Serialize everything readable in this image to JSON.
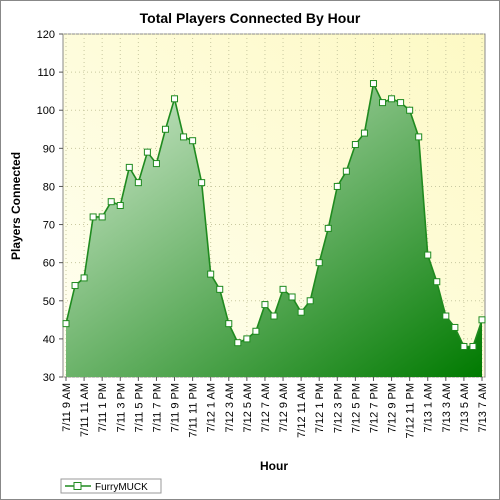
{
  "chart_data": {
    "type": "area",
    "title": "Total Players Connected By Hour",
    "xlabel": "Hour",
    "ylabel": "Players Connected",
    "ylim": [
      30,
      120
    ],
    "yticks": [
      30,
      40,
      50,
      60,
      70,
      80,
      90,
      100,
      110,
      120
    ],
    "grid": true,
    "legend_position": "bottom-left",
    "colors": {
      "line": "#1f8a1f",
      "fill_light": "#d6ecd3",
      "fill_dark": "#007a00",
      "plot_bg_light": "#fffff2",
      "plot_bg_dark": "#fdf9c4",
      "marker_fill": "#ffffff"
    },
    "x_tick_labels": [
      "7/11 9 AM",
      "7/11 11 AM",
      "7/11 1 PM",
      "7/11 3 PM",
      "7/11 5 PM",
      "7/11 7 PM",
      "7/11 9 PM",
      "7/11 11 PM",
      "7/12 1 AM",
      "7/12 3 AM",
      "7/12 5 AM",
      "7/12 7 AM",
      "7/12 9 AM",
      "7/12 11 AM",
      "7/12 1 PM",
      "7/12 3 PM",
      "7/12 5 PM",
      "7/12 7 PM",
      "7/12 9 PM",
      "7/12 11 PM",
      "7/13 1 AM",
      "7/13 3 AM",
      "7/13 5 AM",
      "7/13 7 AM"
    ],
    "series": [
      {
        "name": "FurryMUCK",
        "values": [
          44,
          54,
          56,
          72,
          72,
          76,
          75,
          85,
          81,
          89,
          86,
          95,
          103,
          93,
          92,
          81,
          57,
          53,
          44,
          39,
          40,
          42,
          49,
          46,
          53,
          51,
          47,
          50,
          60,
          69,
          80,
          84,
          91,
          94,
          107,
          102,
          103,
          102,
          100,
          93,
          62,
          55,
          46,
          43,
          38,
          38,
          45
        ]
      }
    ]
  }
}
